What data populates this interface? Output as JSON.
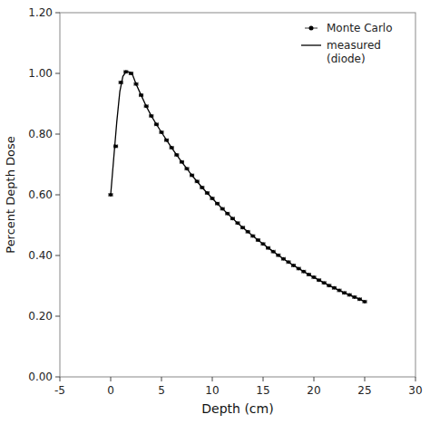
{
  "chart_data": {
    "type": "line",
    "xlabel": "Depth (cm)",
    "ylabel": "Percent Depth Dose",
    "xlim": [
      -5,
      30
    ],
    "ylim": [
      0.0,
      1.2
    ],
    "xticks": [
      -5,
      0,
      5,
      10,
      15,
      20,
      25,
      30
    ],
    "yticks": [
      {
        "value": 0.0,
        "label": "0.00"
      },
      {
        "value": 0.2,
        "label": "0.20"
      },
      {
        "value": 0.4,
        "label": "0.40"
      },
      {
        "value": 0.6,
        "label": "0.60"
      },
      {
        "value": 0.8,
        "label": "0.80"
      },
      {
        "value": 1.0,
        "label": "1.00"
      },
      {
        "value": 1.2,
        "label": "1.20"
      }
    ],
    "grid": false,
    "legend": "upper right",
    "series": [
      {
        "name": "Monte Carlo",
        "type": "scatter",
        "marker": "dot",
        "color": "#000000",
        "x": [
          0.0,
          0.5,
          1.0,
          1.5,
          2.0,
          2.5,
          3.0,
          3.5,
          4.0,
          4.5,
          5.0,
          5.5,
          6.0,
          6.5,
          7.0,
          7.5,
          8.0,
          8.5,
          9.0,
          9.5,
          10.0,
          10.5,
          11.0,
          11.5,
          12.0,
          12.5,
          13.0,
          13.5,
          14.0,
          14.5,
          15.0,
          15.5,
          16.0,
          16.5,
          17.0,
          17.5,
          18.0,
          18.5,
          19.0,
          19.5,
          20.0,
          20.5,
          21.0,
          21.5,
          22.0,
          22.5,
          23.0,
          23.5,
          24.0,
          24.5,
          25.0
        ],
        "values": [
          0.6,
          0.76,
          0.97,
          1.005,
          1.0,
          0.965,
          0.928,
          0.892,
          0.86,
          0.832,
          0.806,
          0.78,
          0.755,
          0.731,
          0.708,
          0.686,
          0.664,
          0.644,
          0.624,
          0.606,
          0.588,
          0.571,
          0.554,
          0.538,
          0.522,
          0.507,
          0.492,
          0.478,
          0.464,
          0.451,
          0.438,
          0.425,
          0.413,
          0.401,
          0.389,
          0.378,
          0.367,
          0.357,
          0.347,
          0.337,
          0.328,
          0.319,
          0.31,
          0.301,
          0.293,
          0.285,
          0.277,
          0.27,
          0.263,
          0.256,
          0.248
        ],
        "xerr": 0.18
      },
      {
        "name": "measured\n(diode)",
        "type": "line",
        "line_style": "solid",
        "color": "#000000",
        "x": [
          0.0,
          0.3,
          0.6,
          0.9,
          1.2,
          1.5,
          1.8,
          2.1,
          2.5,
          3.0,
          3.5,
          4.0,
          4.5,
          5.0,
          5.5,
          6.0,
          6.5,
          7.0,
          7.5,
          8.0,
          8.5,
          9.0,
          9.5,
          10.0,
          10.5,
          11.0,
          11.5,
          12.0,
          12.5,
          13.0,
          13.5,
          14.0,
          14.5,
          15.0,
          15.5,
          16.0,
          16.5,
          17.0,
          17.5,
          18.0,
          18.5,
          19.0,
          19.5,
          20.0,
          20.5,
          21.0,
          21.5,
          22.0,
          22.5,
          23.0,
          23.5,
          24.0,
          24.5,
          25.0
        ],
        "values": [
          0.6,
          0.72,
          0.84,
          0.94,
          0.99,
          1.005,
          1.005,
          1.0,
          0.965,
          0.928,
          0.892,
          0.86,
          0.832,
          0.806,
          0.78,
          0.755,
          0.731,
          0.708,
          0.686,
          0.664,
          0.644,
          0.624,
          0.606,
          0.588,
          0.571,
          0.554,
          0.538,
          0.522,
          0.507,
          0.492,
          0.478,
          0.464,
          0.451,
          0.438,
          0.425,
          0.413,
          0.401,
          0.389,
          0.378,
          0.367,
          0.357,
          0.347,
          0.337,
          0.328,
          0.319,
          0.31,
          0.301,
          0.293,
          0.285,
          0.277,
          0.27,
          0.263,
          0.256,
          0.248
        ]
      }
    ]
  }
}
